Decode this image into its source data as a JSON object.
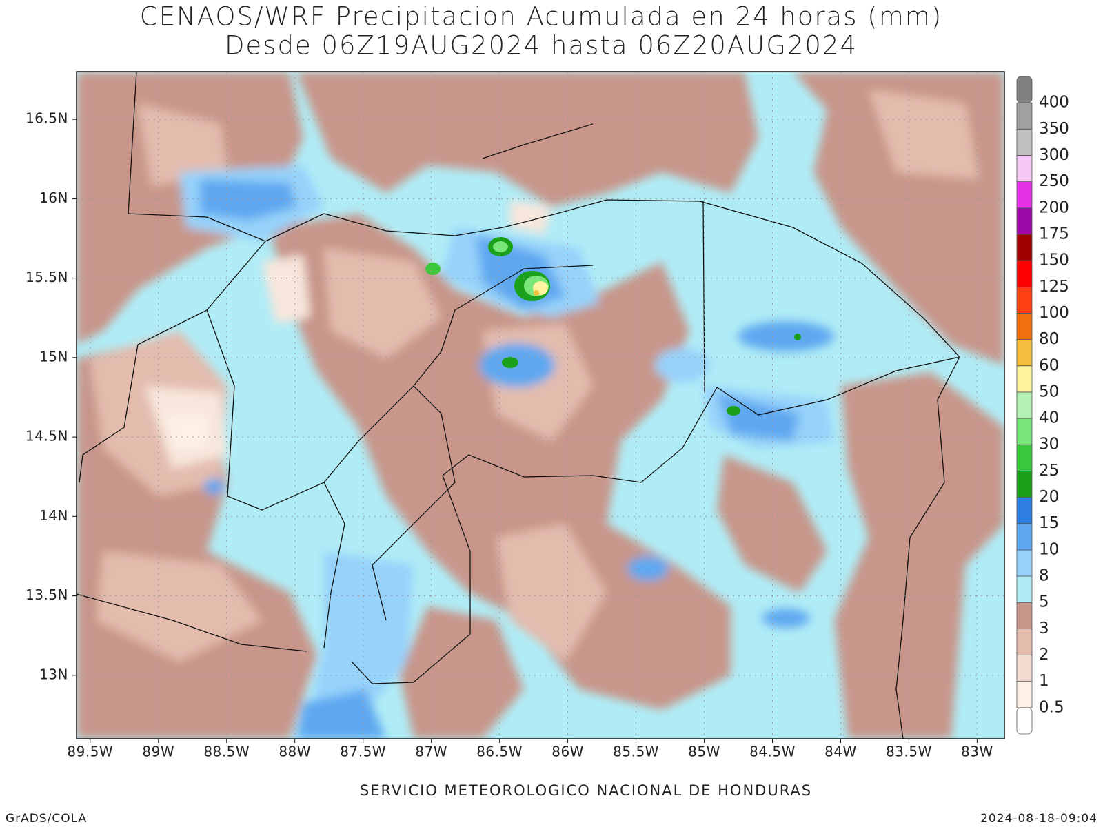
{
  "header": {
    "title": "CENAOS/WRF Precipitacion Acumulada en 24 horas (mm)",
    "subtitle": "Desde 06Z19AUG2024 hasta 06Z20AUG2024"
  },
  "map": {
    "xlim": [
      -89.6,
      -82.8
    ],
    "ylim": [
      12.6,
      16.8
    ],
    "xticks": [
      {
        "value": -89.5,
        "label": "89.5W"
      },
      {
        "value": -89,
        "label": "89W"
      },
      {
        "value": -88.5,
        "label": "88.5W"
      },
      {
        "value": -88,
        "label": "88W"
      },
      {
        "value": -87.5,
        "label": "87.5W"
      },
      {
        "value": -87,
        "label": "87W"
      },
      {
        "value": -86.5,
        "label": "86.5W"
      },
      {
        "value": -86,
        "label": "86W"
      },
      {
        "value": -85.5,
        "label": "85.5W"
      },
      {
        "value": -85,
        "label": "85W"
      },
      {
        "value": -84.5,
        "label": "84.5W"
      },
      {
        "value": -84,
        "label": "84W"
      },
      {
        "value": -83.5,
        "label": "83.5W"
      },
      {
        "value": -83,
        "label": "83W"
      }
    ],
    "yticks": [
      {
        "value": 13,
        "label": "13N"
      },
      {
        "value": 13.5,
        "label": "13.5N"
      },
      {
        "value": 14,
        "label": "14N"
      },
      {
        "value": 14.5,
        "label": "14.5N"
      },
      {
        "value": 15,
        "label": "15N"
      },
      {
        "value": 15.5,
        "label": "15.5N"
      },
      {
        "value": 16,
        "label": "16N"
      },
      {
        "value": 16.5,
        "label": "16.5N"
      }
    ]
  },
  "colorbar": {
    "levels": [
      0.5,
      1,
      2,
      3,
      5,
      8,
      10,
      15,
      20,
      25,
      30,
      40,
      50,
      60,
      80,
      100,
      125,
      150,
      175,
      200,
      250,
      300,
      350,
      400
    ],
    "colors": [
      "#ffffff",
      "#fdf0e4",
      "#f3dcd0",
      "#e3bcae",
      "#c8968a",
      "#b0ecf6",
      "#96d2fa",
      "#5fa8f0",
      "#2f7fe0",
      "#1aa01a",
      "#3cc83c",
      "#78e678",
      "#b4f0b4",
      "#fff5a0",
      "#f5c040",
      "#f07010",
      "#ff4010",
      "#ff0000",
      "#a00000",
      "#9a0aa6",
      "#e632e6",
      "#f5c8f5",
      "#c0c0c0",
      "#a0a0a0",
      "#808080"
    ]
  },
  "footer": {
    "center": "SERVICIO METEOROLOGICO NACIONAL DE HONDURAS",
    "left": "GrADS/COLA",
    "right": "2024-08-18-09:04"
  }
}
